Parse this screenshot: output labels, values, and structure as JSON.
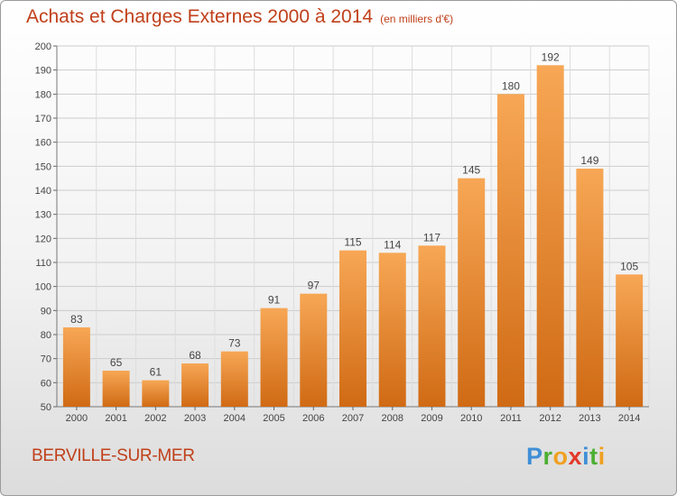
{
  "header": {
    "title": "Achats et Charges Externes 2000 à 2014",
    "subtitle": "(en milliers d'€)"
  },
  "footer": {
    "commune": "BERVILLE-SUR-MER",
    "brand_letters": [
      "P",
      "r",
      "o",
      "x",
      "i",
      "t",
      "i"
    ]
  },
  "colors": {
    "title": "#c0401a",
    "bar_top": "#f7a755",
    "bar_bottom": "#d06a14",
    "grid": "#cccccc"
  },
  "chart_data": {
    "type": "bar",
    "title": "Achats et Charges Externes 2000 à 2014",
    "subtitle": "(en milliers d'€)",
    "categories": [
      "2000",
      "2001",
      "2002",
      "2003",
      "2004",
      "2005",
      "2006",
      "2007",
      "2008",
      "2009",
      "2010",
      "2011",
      "2012",
      "2013",
      "2014"
    ],
    "values": [
      83,
      65,
      61,
      68,
      73,
      91,
      97,
      115,
      114,
      117,
      145,
      180,
      192,
      149,
      105
    ],
    "ylim": [
      50,
      200
    ],
    "yticks": [
      50,
      60,
      70,
      80,
      90,
      100,
      110,
      120,
      130,
      140,
      150,
      160,
      170,
      180,
      190,
      200
    ],
    "grid": true,
    "xlabel": "",
    "ylabel": ""
  }
}
